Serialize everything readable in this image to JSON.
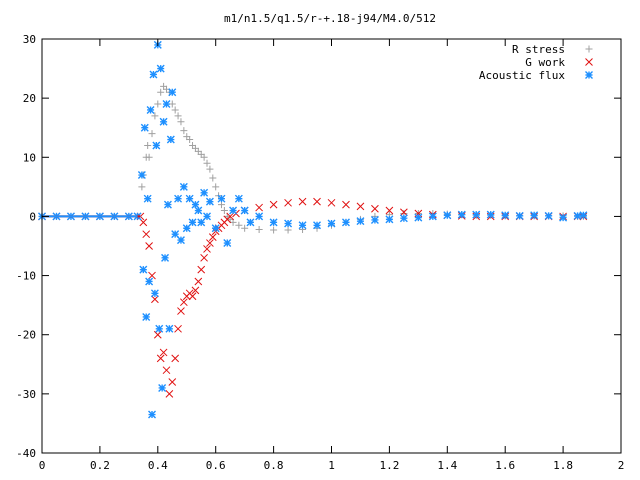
{
  "chart_data": {
    "type": "scatter",
    "title": "m1/n1.5/q1.5/r-+.18-j94/M4.0/512",
    "xlabel": "",
    "ylabel": "",
    "xlim": [
      0,
      2
    ],
    "ylim": [
      -40,
      30
    ],
    "xticks": [
      "0",
      "0.2",
      "0.4",
      "0.6",
      "0.8",
      "1",
      "1.2",
      "1.4",
      "1.6",
      "1.8",
      "2"
    ],
    "yticks": [
      "30",
      "20",
      "10",
      "0",
      "-10",
      "-20",
      "-30",
      "-40"
    ],
    "legend_position": "top-right",
    "grid": false,
    "series": [
      {
        "name": "R stress",
        "marker": "plus",
        "color": "#a0a0a0",
        "points": [
          [
            0.0,
            0.0
          ],
          [
            0.05,
            0.0
          ],
          [
            0.1,
            0.0
          ],
          [
            0.15,
            0.0
          ],
          [
            0.2,
            0.0
          ],
          [
            0.25,
            0.0
          ],
          [
            0.3,
            0.0
          ],
          [
            0.33,
            0.0
          ],
          [
            0.345,
            5.0
          ],
          [
            0.35,
            7.0
          ],
          [
            0.36,
            10.0
          ],
          [
            0.365,
            12.0
          ],
          [
            0.37,
            10.0
          ],
          [
            0.38,
            14.0
          ],
          [
            0.39,
            17.0
          ],
          [
            0.4,
            19.0
          ],
          [
            0.41,
            21.0
          ],
          [
            0.42,
            22.0
          ],
          [
            0.43,
            21.5
          ],
          [
            0.44,
            21.0
          ],
          [
            0.45,
            19.0
          ],
          [
            0.46,
            18.0
          ],
          [
            0.47,
            17.0
          ],
          [
            0.48,
            16.0
          ],
          [
            0.49,
            14.5
          ],
          [
            0.5,
            13.5
          ],
          [
            0.51,
            13.0
          ],
          [
            0.52,
            12.0
          ],
          [
            0.53,
            11.5
          ],
          [
            0.54,
            11.0
          ],
          [
            0.55,
            10.5
          ],
          [
            0.56,
            10.0
          ],
          [
            0.57,
            9.0
          ],
          [
            0.58,
            8.0
          ],
          [
            0.59,
            6.5
          ],
          [
            0.6,
            5.0
          ],
          [
            0.61,
            3.5
          ],
          [
            0.62,
            2.0
          ],
          [
            0.63,
            1.0
          ],
          [
            0.64,
            0.0
          ],
          [
            0.65,
            -0.5
          ],
          [
            0.66,
            -1.0
          ],
          [
            0.68,
            -1.5
          ],
          [
            0.7,
            -2.0
          ],
          [
            0.75,
            -2.2
          ],
          [
            0.8,
            -2.3
          ],
          [
            0.85,
            -2.3
          ],
          [
            0.9,
            -2.2
          ],
          [
            0.95,
            -2.0
          ],
          [
            1.0,
            -1.5
          ],
          [
            1.05,
            -1.0
          ],
          [
            1.1,
            -0.5
          ],
          [
            1.15,
            0.0
          ],
          [
            1.2,
            0.3
          ],
          [
            1.25,
            0.5
          ],
          [
            1.3,
            0.5
          ],
          [
            1.35,
            0.5
          ],
          [
            1.4,
            0.4
          ],
          [
            1.45,
            0.3
          ],
          [
            1.5,
            0.2
          ],
          [
            1.55,
            0.2
          ],
          [
            1.6,
            0.1
          ],
          [
            1.65,
            0.1
          ],
          [
            1.7,
            0.1
          ],
          [
            1.75,
            0.1
          ],
          [
            1.8,
            0.1
          ],
          [
            1.85,
            0.0
          ],
          [
            1.87,
            0.0
          ]
        ]
      },
      {
        "name": "G work",
        "marker": "cross",
        "color": "#e01010",
        "points": [
          [
            0.0,
            0.0
          ],
          [
            0.05,
            0.0
          ],
          [
            0.1,
            0.0
          ],
          [
            0.15,
            0.0
          ],
          [
            0.2,
            0.0
          ],
          [
            0.25,
            0.0
          ],
          [
            0.3,
            0.0
          ],
          [
            0.34,
            0.0
          ],
          [
            0.35,
            -1.0
          ],
          [
            0.36,
            -3.0
          ],
          [
            0.37,
            -5.0
          ],
          [
            0.38,
            -10.0
          ],
          [
            0.39,
            -14.0
          ],
          [
            0.4,
            -20.0
          ],
          [
            0.41,
            -24.0
          ],
          [
            0.42,
            -23.0
          ],
          [
            0.43,
            -26.0
          ],
          [
            0.44,
            -30.0
          ],
          [
            0.45,
            -28.0
          ],
          [
            0.46,
            -24.0
          ],
          [
            0.47,
            -19.0
          ],
          [
            0.48,
            -16.0
          ],
          [
            0.49,
            -14.5
          ],
          [
            0.5,
            -13.5
          ],
          [
            0.51,
            -13.0
          ],
          [
            0.52,
            -13.5
          ],
          [
            0.53,
            -12.5
          ],
          [
            0.54,
            -11.0
          ],
          [
            0.55,
            -9.0
          ],
          [
            0.56,
            -7.0
          ],
          [
            0.57,
            -5.5
          ],
          [
            0.58,
            -4.5
          ],
          [
            0.59,
            -3.5
          ],
          [
            0.6,
            -2.5
          ],
          [
            0.61,
            -2.0
          ],
          [
            0.62,
            -1.5
          ],
          [
            0.63,
            -1.0
          ],
          [
            0.64,
            -0.5
          ],
          [
            0.65,
            0.0
          ],
          [
            0.67,
            0.5
          ],
          [
            0.7,
            1.0
          ],
          [
            0.75,
            1.5
          ],
          [
            0.8,
            2.0
          ],
          [
            0.85,
            2.3
          ],
          [
            0.9,
            2.5
          ],
          [
            0.95,
            2.5
          ],
          [
            1.0,
            2.3
          ],
          [
            1.05,
            2.0
          ],
          [
            1.1,
            1.7
          ],
          [
            1.15,
            1.3
          ],
          [
            1.2,
            1.0
          ],
          [
            1.25,
            0.7
          ],
          [
            1.3,
            0.5
          ],
          [
            1.35,
            0.3
          ],
          [
            1.4,
            0.2
          ],
          [
            1.45,
            0.1
          ],
          [
            1.5,
            0.0
          ],
          [
            1.55,
            0.0
          ],
          [
            1.6,
            0.0
          ],
          [
            1.65,
            0.0
          ],
          [
            1.7,
            0.0
          ],
          [
            1.75,
            0.0
          ],
          [
            1.8,
            0.0
          ],
          [
            1.85,
            0.0
          ],
          [
            1.87,
            0.0
          ]
        ]
      },
      {
        "name": "Acoustic flux",
        "marker": "star",
        "color": "#1e90ff",
        "points": [
          [
            0.0,
            0.0
          ],
          [
            0.05,
            0.0
          ],
          [
            0.1,
            0.0
          ],
          [
            0.15,
            0.0
          ],
          [
            0.2,
            0.0
          ],
          [
            0.25,
            0.0
          ],
          [
            0.3,
            0.0
          ],
          [
            0.33,
            0.0
          ],
          [
            0.345,
            7.0
          ],
          [
            0.35,
            -9.0
          ],
          [
            0.355,
            15.0
          ],
          [
            0.36,
            -17.0
          ],
          [
            0.365,
            3.0
          ],
          [
            0.37,
            -11.0
          ],
          [
            0.375,
            18.0
          ],
          [
            0.38,
            -33.5
          ],
          [
            0.385,
            24.0
          ],
          [
            0.39,
            -13.0
          ],
          [
            0.395,
            12.0
          ],
          [
            0.4,
            29.0
          ],
          [
            0.405,
            -19.0
          ],
          [
            0.41,
            25.0
          ],
          [
            0.415,
            -29.0
          ],
          [
            0.42,
            16.0
          ],
          [
            0.425,
            -7.0
          ],
          [
            0.43,
            19.0
          ],
          [
            0.435,
            2.0
          ],
          [
            0.44,
            -19.0
          ],
          [
            0.445,
            13.0
          ],
          [
            0.45,
            21.0
          ],
          [
            0.46,
            -3.0
          ],
          [
            0.47,
            3.0
          ],
          [
            0.48,
            -4.0
          ],
          [
            0.49,
            5.0
          ],
          [
            0.5,
            -2.0
          ],
          [
            0.51,
            3.0
          ],
          [
            0.52,
            -1.0
          ],
          [
            0.53,
            2.0
          ],
          [
            0.54,
            1.0
          ],
          [
            0.55,
            -1.0
          ],
          [
            0.56,
            4.0
          ],
          [
            0.57,
            0.0
          ],
          [
            0.58,
            2.5
          ],
          [
            0.6,
            -2.0
          ],
          [
            0.62,
            3.0
          ],
          [
            0.64,
            -4.5
          ],
          [
            0.66,
            1.0
          ],
          [
            0.68,
            3.0
          ],
          [
            0.7,
            1.0
          ],
          [
            0.72,
            -1.0
          ],
          [
            0.75,
            0.0
          ],
          [
            0.8,
            -1.0
          ],
          [
            0.85,
            -1.2
          ],
          [
            0.9,
            -1.5
          ],
          [
            0.95,
            -1.5
          ],
          [
            1.0,
            -1.2
          ],
          [
            1.05,
            -1.0
          ],
          [
            1.1,
            -0.8
          ],
          [
            1.15,
            -0.6
          ],
          [
            1.2,
            -0.5
          ],
          [
            1.25,
            -0.3
          ],
          [
            1.3,
            -0.2
          ],
          [
            1.35,
            0.0
          ],
          [
            1.4,
            0.2
          ],
          [
            1.45,
            0.3
          ],
          [
            1.5,
            0.3
          ],
          [
            1.55,
            0.3
          ],
          [
            1.6,
            0.2
          ],
          [
            1.65,
            0.1
          ],
          [
            1.7,
            0.2
          ],
          [
            1.75,
            0.1
          ],
          [
            1.8,
            -0.2
          ],
          [
            1.85,
            0.1
          ],
          [
            1.87,
            0.2
          ]
        ]
      }
    ]
  }
}
